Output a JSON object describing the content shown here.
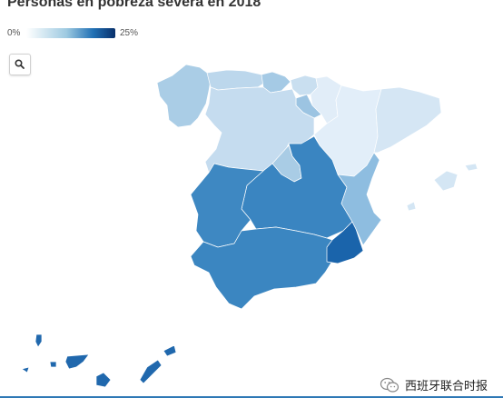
{
  "title": "Personas en pobreza severa en 2018",
  "legend": {
    "min_label": "0%",
    "max_label": "25%"
  },
  "zoom_button": {
    "icon": "search-icon"
  },
  "watermark": {
    "text": "西班牙联合时报",
    "icon": "wechat-icon"
  },
  "colors": {
    "scale_low": "#ffffff",
    "scale_high": "#08306b",
    "accent_line": "#2e78b5"
  },
  "regions": [
    {
      "id": "galicia",
      "fill": "#aacde6"
    },
    {
      "id": "asturias",
      "fill": "#bcd7ec"
    },
    {
      "id": "cantabria",
      "fill": "#a5cae5"
    },
    {
      "id": "pais-vasco",
      "fill": "#c9dff0"
    },
    {
      "id": "navarra",
      "fill": "#e1edf8"
    },
    {
      "id": "la-rioja",
      "fill": "#9cc4e2"
    },
    {
      "id": "aragon",
      "fill": "#e2eef9"
    },
    {
      "id": "cataluna",
      "fill": "#d5e6f4"
    },
    {
      "id": "castilla-y-leon",
      "fill": "#c5dcef"
    },
    {
      "id": "madrid",
      "fill": "#a9cce5"
    },
    {
      "id": "castilla-la-mancha",
      "fill": "#3a85c1"
    },
    {
      "id": "extremadura",
      "fill": "#3e88c2"
    },
    {
      "id": "andalucia",
      "fill": "#3b86c1"
    },
    {
      "id": "murcia",
      "fill": "#1a64ab"
    },
    {
      "id": "comunitat-valenciana",
      "fill": "#8ebde0"
    },
    {
      "id": "illes-balears",
      "fill": "#d4e6f4"
    },
    {
      "id": "canarias",
      "fill": "#2068ad"
    }
  ]
}
